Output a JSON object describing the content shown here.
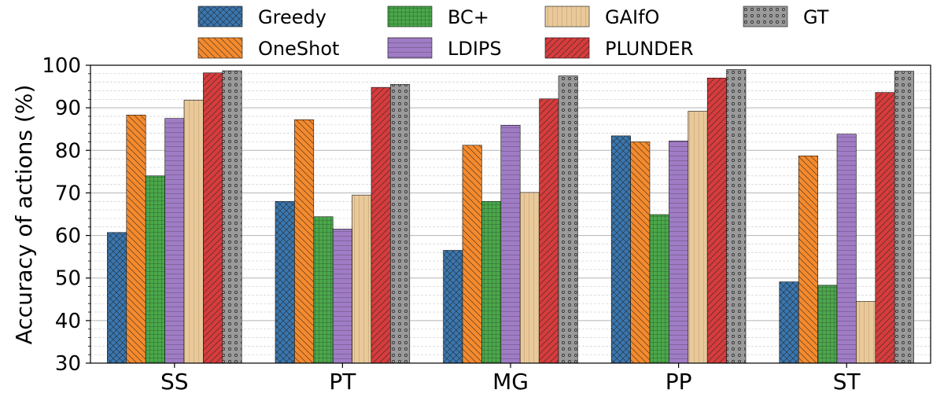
{
  "chart_data": {
    "type": "bar",
    "categories": [
      "SS",
      "PT",
      "MG",
      "PP",
      "ST"
    ],
    "ylabel": "Accuracy of actions (%)",
    "xlabel": "",
    "ylim": [
      30,
      100
    ],
    "yticks": [
      30,
      40,
      50,
      60,
      70,
      80,
      90,
      100
    ],
    "grid": "horizontal major and minor",
    "legend_position": "top, outside plot, 4 columns",
    "series": [
      {
        "name": "Greedy",
        "color": "#3a77b0",
        "pattern": "crosshatch",
        "values": [
          60.7,
          68.0,
          56.5,
          83.4,
          49.1
        ]
      },
      {
        "name": "OneShot",
        "color": "#f58a2d",
        "pattern": "backslash",
        "values": [
          88.3,
          87.2,
          81.2,
          82.0,
          78.7
        ]
      },
      {
        "name": "BC+",
        "color": "#4aa84a",
        "pattern": "grid",
        "values": [
          74.0,
          64.4,
          68.0,
          64.9,
          48.3
        ]
      },
      {
        "name": "LDIPS",
        "color": "#a07cc5",
        "pattern": "horizontal",
        "values": [
          87.5,
          61.5,
          85.9,
          82.2,
          83.8
        ]
      },
      {
        "name": "GAIfO",
        "color": "#e9c89a",
        "pattern": "vertical",
        "values": [
          91.8,
          69.5,
          70.1,
          89.2,
          44.5
        ]
      },
      {
        "name": "PLUNDER",
        "color": "#d63c3c",
        "pattern": "slash",
        "values": [
          98.2,
          94.8,
          92.1,
          97.0,
          93.6
        ]
      },
      {
        "name": "GT",
        "color": "#9a9a9a",
        "pattern": "dots",
        "values": [
          98.7,
          95.5,
          97.5,
          99.0,
          98.6
        ]
      }
    ]
  }
}
